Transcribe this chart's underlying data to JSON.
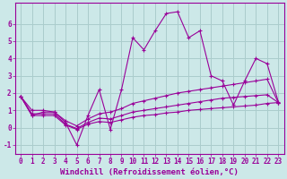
{
  "background_color": "#cce8e8",
  "grid_color": "#aacccc",
  "line_color": "#990099",
  "xlabel": "Windchill (Refroidissement éolien,°C)",
  "xlabel_fontsize": 6.5,
  "tick_fontsize": 5.5,
  "ylim": [
    -1.5,
    7.2
  ],
  "xlim": [
    -0.5,
    23.5
  ],
  "yticks": [
    -1,
    0,
    1,
    2,
    3,
    4,
    5,
    6
  ],
  "xticks": [
    0,
    1,
    2,
    3,
    4,
    5,
    6,
    7,
    8,
    9,
    10,
    11,
    12,
    13,
    14,
    15,
    16,
    17,
    18,
    19,
    20,
    21,
    22,
    23
  ],
  "series_main": [
    1.8,
    0.7,
    0.9,
    0.9,
    0.3,
    -1.0,
    0.7,
    2.2,
    -0.1,
    2.2,
    5.2,
    4.5,
    5.6,
    6.6,
    6.7,
    5.2,
    5.6,
    3.0,
    2.7,
    1.3,
    2.7,
    4.0,
    3.7,
    1.5
  ],
  "series_upper": [
    1.8,
    1.0,
    1.0,
    0.9,
    0.4,
    0.1,
    0.5,
    0.8,
    0.9,
    1.1,
    1.4,
    1.55,
    1.7,
    1.85,
    2.0,
    2.1,
    2.2,
    2.3,
    2.4,
    2.5,
    2.6,
    2.7,
    2.8,
    1.45
  ],
  "series_mid": [
    1.8,
    0.8,
    0.8,
    0.8,
    0.2,
    -0.05,
    0.3,
    0.55,
    0.5,
    0.7,
    0.9,
    1.0,
    1.1,
    1.2,
    1.3,
    1.4,
    1.5,
    1.6,
    1.7,
    1.75,
    1.8,
    1.85,
    1.9,
    1.45
  ],
  "series_lower": [
    1.8,
    0.7,
    0.7,
    0.7,
    0.15,
    -0.1,
    0.2,
    0.35,
    0.3,
    0.45,
    0.6,
    0.7,
    0.75,
    0.85,
    0.9,
    1.0,
    1.05,
    1.1,
    1.15,
    1.2,
    1.25,
    1.3,
    1.4,
    1.45
  ]
}
